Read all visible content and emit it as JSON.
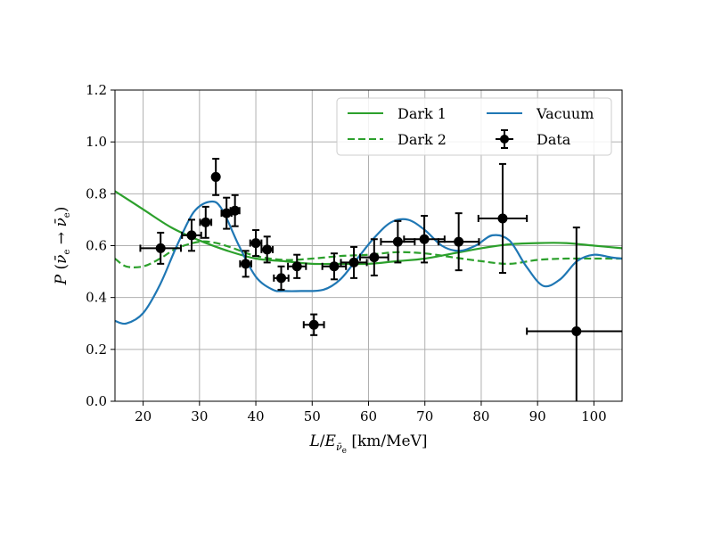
{
  "chart_data": {
    "type": "line",
    "title": "",
    "xlabel": "L/E [km/MeV]",
    "ylabel": "P (ν̄e → ν̄e)",
    "xlim": [
      15,
      105
    ],
    "ylim": [
      0.0,
      1.2
    ],
    "xticks": [
      20,
      30,
      40,
      50,
      60,
      70,
      80,
      90,
      100
    ],
    "yticks": [
      "0.0",
      "0.2",
      "0.4",
      "0.6",
      "0.8",
      "1.0",
      "1.2"
    ],
    "grid": true,
    "legend_position": "top-right",
    "colors": {
      "green": "#2ca02c",
      "blue": "#1f77b4",
      "data": "#000000"
    },
    "series": [
      {
        "name": "Dark 1",
        "style": "solid",
        "color": "#2ca02c",
        "x": [
          15,
          20,
          25,
          30,
          35,
          40,
          45,
          50,
          55,
          60,
          65,
          70,
          75,
          80,
          85,
          90,
          95,
          100,
          105
        ],
        "y": [
          0.81,
          0.74,
          0.67,
          0.62,
          0.58,
          0.55,
          0.54,
          0.53,
          0.53,
          0.53,
          0.54,
          0.55,
          0.57,
          0.59,
          0.605,
          0.61,
          0.61,
          0.6,
          0.59
        ]
      },
      {
        "name": "Dark 2",
        "style": "dashed",
        "color": "#2ca02c",
        "x": [
          15,
          17,
          20,
          23,
          26,
          30,
          33,
          36,
          40,
          45,
          50,
          55,
          60,
          65,
          70,
          75,
          80,
          85,
          90,
          95,
          100,
          105
        ],
        "y": [
          0.55,
          0.52,
          0.52,
          0.55,
          0.59,
          0.615,
          0.61,
          0.59,
          0.56,
          0.545,
          0.55,
          0.56,
          0.565,
          0.575,
          0.57,
          0.555,
          0.54,
          0.53,
          0.545,
          0.55,
          0.55,
          0.55
        ]
      },
      {
        "name": "Vacuum",
        "style": "solid",
        "color": "#1f77b4",
        "x": [
          15,
          17,
          20,
          23,
          26,
          29,
          32,
          34,
          37,
          40,
          43,
          45,
          48,
          52,
          55,
          58,
          61,
          64,
          67,
          70,
          73,
          76,
          79,
          82,
          85,
          88,
          91,
          94,
          97,
          100,
          103,
          105
        ],
        "y": [
          0.31,
          0.3,
          0.34,
          0.45,
          0.6,
          0.73,
          0.77,
          0.74,
          0.6,
          0.48,
          0.43,
          0.425,
          0.425,
          0.43,
          0.47,
          0.55,
          0.63,
          0.69,
          0.7,
          0.66,
          0.6,
          0.58,
          0.6,
          0.64,
          0.62,
          0.52,
          0.445,
          0.47,
          0.54,
          0.565,
          0.555,
          0.55
        ]
      }
    ],
    "data_points": {
      "name": "Data",
      "x": [
        23.1,
        28.6,
        31.1,
        32.9,
        34.8,
        36.3,
        38.2,
        40.0,
        42.0,
        44.5,
        47.3,
        50.3,
        53.9,
        57.4,
        61.0,
        65.2,
        69.9,
        76.0,
        83.8,
        96.9
      ],
      "y": [
        0.59,
        0.64,
        0.69,
        0.865,
        0.725,
        0.735,
        0.53,
        0.61,
        0.585,
        0.475,
        0.52,
        0.295,
        0.52,
        0.535,
        0.555,
        0.615,
        0.625,
        0.615,
        0.705,
        0.27
      ],
      "xerr": [
        3.6,
        1.7,
        1.0,
        0.4,
        0.9,
        0.8,
        1.0,
        1.0,
        1.0,
        1.3,
        1.6,
        1.8,
        2.1,
        2.3,
        2.5,
        3.0,
        3.6,
        3.6,
        4.3,
        8.8
      ],
      "yerr": [
        0.06,
        0.06,
        0.06,
        0.07,
        0.06,
        0.06,
        0.05,
        0.05,
        0.05,
        0.045,
        0.045,
        0.04,
        0.05,
        0.06,
        0.07,
        0.08,
        0.09,
        0.11,
        0.21,
        0.4
      ]
    },
    "legend": {
      "dark1": "Dark 1",
      "dark2": "Dark 2",
      "vacuum": "Vacuum",
      "data": "Data"
    }
  }
}
